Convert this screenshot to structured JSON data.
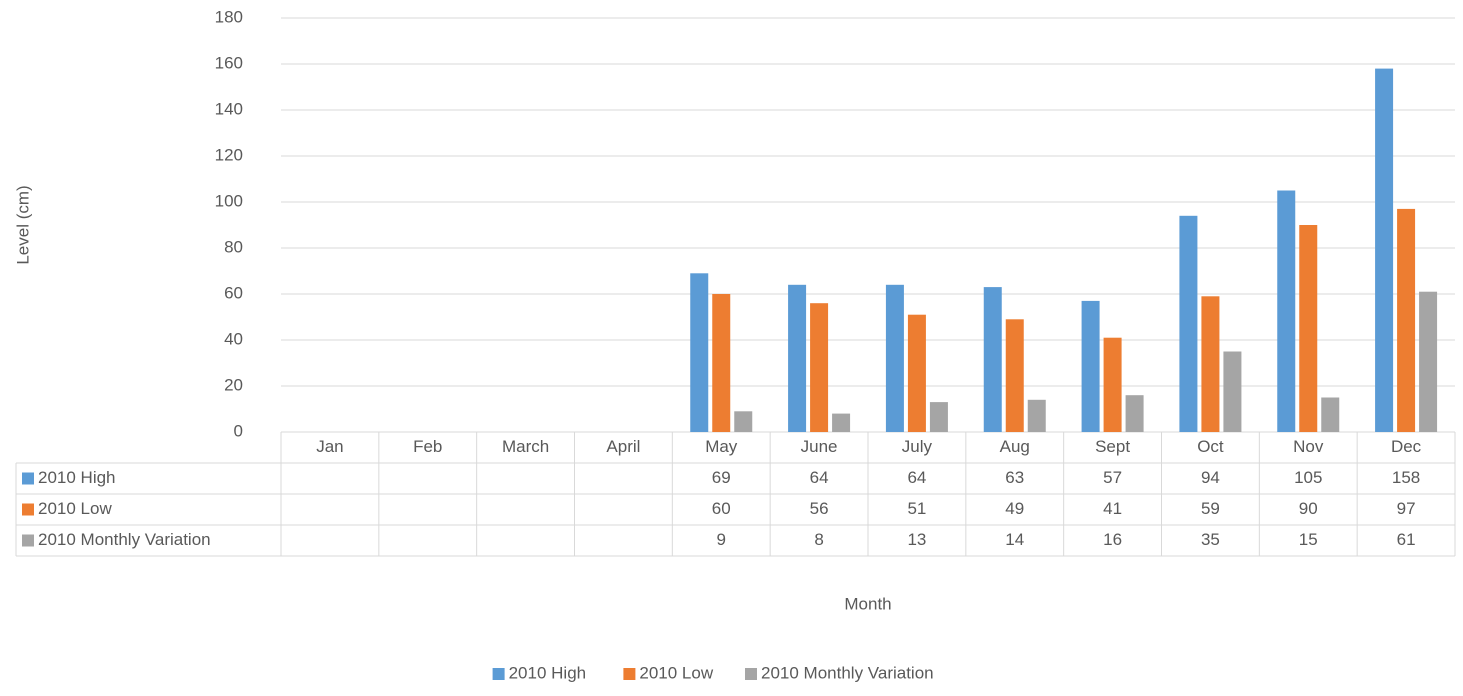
{
  "chart_data": {
    "type": "bar",
    "categories": [
      "Jan",
      "Feb",
      "March",
      "April",
      "May",
      "June",
      "July",
      "Aug",
      "Sept",
      "Oct",
      "Nov",
      "Dec"
    ],
    "series": [
      {
        "name": "2010 High",
        "color": "#5b9bd5",
        "values": [
          null,
          null,
          null,
          null,
          69,
          64,
          64,
          63,
          57,
          94,
          105,
          158
        ]
      },
      {
        "name": "2010 Low",
        "color": "#ed7d31",
        "values": [
          null,
          null,
          null,
          null,
          60,
          56,
          51,
          49,
          41,
          59,
          90,
          97
        ]
      },
      {
        "name": "2010 Monthly Variation",
        "color": "#a5a5a5",
        "values": [
          null,
          null,
          null,
          null,
          9,
          8,
          13,
          14,
          16,
          35,
          15,
          61
        ]
      }
    ],
    "ylim": [
      0,
      180
    ],
    "yticks": [
      0,
      20,
      40,
      60,
      80,
      100,
      120,
      140,
      160,
      180
    ],
    "grid": true,
    "y_label": "Level (cm)",
    "x_label": "Month",
    "legend": "bottom"
  }
}
